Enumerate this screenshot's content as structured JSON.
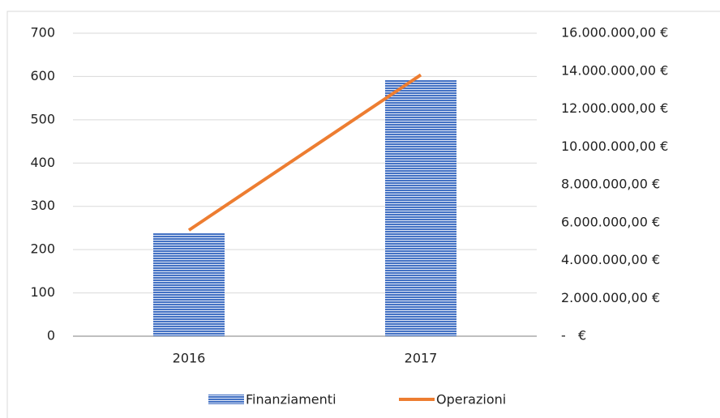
{
  "chart_data": {
    "type": "bar_line",
    "categories": [
      "2016",
      "2017"
    ],
    "series": [
      {
        "name": "Finanziamenti",
        "color": "#4472c4",
        "type": "bar",
        "values": [
          238,
          592
        ]
      },
      {
        "name": "Operazioni",
        "color": "#ed7d31",
        "type": "line",
        "axis": "y2",
        "values": [
          5600000,
          13800000
        ]
      }
    ],
    "ylim": [
      0,
      700
    ],
    "yticks": [
      0,
      100,
      200,
      300,
      400,
      500,
      600,
      700
    ],
    "y2lim": [
      0,
      16000000
    ],
    "y2ticks": [
      {
        "value": 0,
        "label": "-   €"
      },
      {
        "value": 2000000,
        "label": "2.000.000,00 €"
      },
      {
        "value": 4000000,
        "label": "4.000.000,00 €"
      },
      {
        "value": 6000000,
        "label": "6.000.000,00 €"
      },
      {
        "value": 8000000,
        "label": "8.000.000,00 €"
      },
      {
        "value": 10000000,
        "label": "10.000.000,00 €"
      },
      {
        "value": 12000000,
        "label": "12.000.000,00 €"
      },
      {
        "value": 14000000,
        "label": "14.000.000,00 €"
      },
      {
        "value": 16000000,
        "label": "16.000.000,00 €"
      }
    ],
    "grid": true,
    "legend": "bottom"
  }
}
